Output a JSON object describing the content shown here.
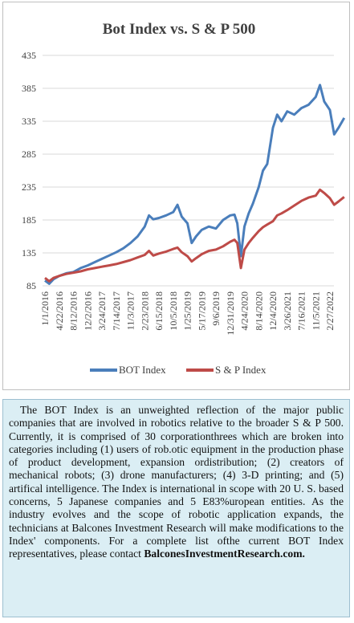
{
  "chart_data": {
    "type": "line",
    "title": "Bot Index vs. S & P 500",
    "xlabel": "",
    "ylabel": "",
    "ylim": [
      85,
      435
    ],
    "yticks": [
      85,
      135,
      185,
      235,
      285,
      335,
      385,
      435
    ],
    "x_tick_labels": [
      "1/1/2016",
      "4/22/2016",
      "8/12/2016",
      "12/2/2016",
      "3/24/2017",
      "7/14/2017",
      "11/3/2017",
      "2/23/2018",
      "6/15/2018",
      "10/5/2018",
      "1/25/2019",
      "5/17/2019",
      "9/6/2019",
      "12/31/2019",
      "4/24/2020",
      "8/14/2020",
      "12/4/2020",
      "3/26/2021",
      "7/16/2021",
      "11/5/2021",
      "2/27/2022"
    ],
    "grid": true,
    "legend_position": "bottom",
    "series": [
      {
        "name": "BOT Index",
        "color": "#4a7ebb",
        "values": [
          [
            0,
            93
          ],
          [
            0.3,
            88
          ],
          [
            0.6,
            95
          ],
          [
            1,
            100
          ],
          [
            1.5,
            104
          ],
          [
            2,
            106
          ],
          [
            2.5,
            112
          ],
          [
            3,
            116
          ],
          [
            3.5,
            121
          ],
          [
            4,
            126
          ],
          [
            4.5,
            131
          ],
          [
            5,
            136
          ],
          [
            5.5,
            142
          ],
          [
            6,
            150
          ],
          [
            6.5,
            160
          ],
          [
            7,
            175
          ],
          [
            7.3,
            192
          ],
          [
            7.6,
            186
          ],
          [
            8,
            188
          ],
          [
            8.5,
            192
          ],
          [
            9,
            197
          ],
          [
            9.3,
            208
          ],
          [
            9.6,
            190
          ],
          [
            10,
            180
          ],
          [
            10.3,
            150
          ],
          [
            10.6,
            160
          ],
          [
            11,
            170
          ],
          [
            11.5,
            175
          ],
          [
            12,
            172
          ],
          [
            12.5,
            185
          ],
          [
            13,
            192
          ],
          [
            13.3,
            193
          ],
          [
            13.5,
            180
          ],
          [
            13.75,
            130
          ],
          [
            14,
            175
          ],
          [
            14.3,
            195
          ],
          [
            14.6,
            210
          ],
          [
            15,
            235
          ],
          [
            15.3,
            260
          ],
          [
            15.6,
            270
          ],
          [
            16,
            325
          ],
          [
            16.3,
            345
          ],
          [
            16.6,
            335
          ],
          [
            17,
            350
          ],
          [
            17.5,
            345
          ],
          [
            18,
            355
          ],
          [
            18.5,
            360
          ],
          [
            19,
            372
          ],
          [
            19.3,
            390
          ],
          [
            19.6,
            365
          ],
          [
            20,
            352
          ],
          [
            20.3,
            315
          ],
          [
            20.6,
            325
          ],
          [
            21,
            340
          ]
        ]
      },
      {
        "name": "S & P Index",
        "color": "#be4b48",
        "values": [
          [
            0,
            97
          ],
          [
            0.3,
            92
          ],
          [
            0.6,
            97
          ],
          [
            1,
            100
          ],
          [
            1.5,
            103
          ],
          [
            2,
            105
          ],
          [
            2.5,
            107
          ],
          [
            3,
            110
          ],
          [
            3.5,
            112
          ],
          [
            4,
            114
          ],
          [
            4.5,
            116
          ],
          [
            5,
            118
          ],
          [
            5.5,
            121
          ],
          [
            6,
            124
          ],
          [
            6.5,
            128
          ],
          [
            7,
            132
          ],
          [
            7.3,
            138
          ],
          [
            7.6,
            131
          ],
          [
            8,
            134
          ],
          [
            8.5,
            137
          ],
          [
            9,
            141
          ],
          [
            9.3,
            143
          ],
          [
            9.6,
            136
          ],
          [
            10,
            130
          ],
          [
            10.3,
            122
          ],
          [
            10.6,
            127
          ],
          [
            11,
            133
          ],
          [
            11.5,
            138
          ],
          [
            12,
            140
          ],
          [
            12.5,
            145
          ],
          [
            13,
            152
          ],
          [
            13.3,
            155
          ],
          [
            13.5,
            150
          ],
          [
            13.75,
            112
          ],
          [
            14,
            140
          ],
          [
            14.3,
            150
          ],
          [
            14.6,
            158
          ],
          [
            15,
            168
          ],
          [
            15.3,
            174
          ],
          [
            15.6,
            178
          ],
          [
            16,
            183
          ],
          [
            16.3,
            192
          ],
          [
            16.6,
            195
          ],
          [
            17,
            200
          ],
          [
            17.5,
            207
          ],
          [
            18,
            214
          ],
          [
            18.5,
            219
          ],
          [
            19,
            222
          ],
          [
            19.3,
            231
          ],
          [
            19.6,
            226
          ],
          [
            20,
            218
          ],
          [
            20.3,
            208
          ],
          [
            20.6,
            213
          ],
          [
            21,
            220
          ]
        ]
      }
    ]
  },
  "description": {
    "text": "The BOT Index is an unweighted reflection of the major public companies that are involved in robotics relative to the broader S & P 500. Currently, it is comprised of 30 corporationthrees which are broken into categories including (1) users of rob.otic equipment in the production phase of product development, expansion ordistribution; (2) creators of mechanical robots; (3) drone manufacturers; (4) 3-D printing; and (5) artifical intelligence. The Index is international in scope with 20 U. S. based concerns, 5 Japanese companies and 5 E83%uropean entities. As the industry evolves and the scope of robotic application expands, the technicians at Balcones Investment Research will make modifications to the Index' components. For a complete list ofthe current BOT Index representatives, please contact",
    "link": "BalconesInvestmentResearch.com."
  }
}
